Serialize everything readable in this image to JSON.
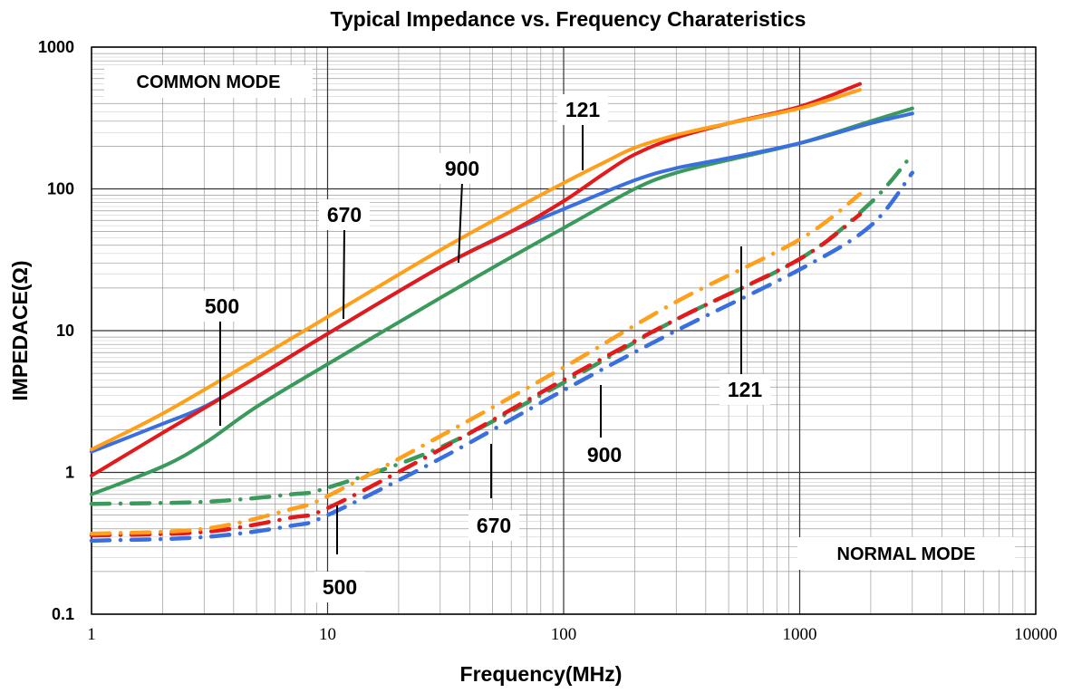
{
  "chart_data": {
    "type": "line",
    "title": "Typical Impedance vs. Frequency Charateristics",
    "xlabel": "Frequency(MHz)",
    "ylabel": "IMPEDACE(Ω)",
    "x_scale": "log",
    "y_scale": "log",
    "xlim": [
      1,
      10000
    ],
    "ylim": [
      0.1,
      1000
    ],
    "x_ticks": [
      "1",
      "10",
      "100",
      "1000",
      "10000"
    ],
    "y_ticks": [
      "1000",
      "100",
      "10",
      "1",
      "0.1"
    ],
    "grid": true,
    "mode_labels": {
      "common": "COMMON MODE",
      "normal": "NORMAL MODE"
    },
    "colors": {
      "121": "#e31a1c",
      "900": "#3a6fe0",
      "670": "#ff9f1a",
      "500": "#3a9a5c"
    },
    "series": [
      {
        "name": "121",
        "mode": "common",
        "color": "#e31a1c",
        "points": [
          [
            1,
            0.95
          ],
          [
            2,
            1.9
          ],
          [
            5,
            4.7
          ],
          [
            10,
            9.5
          ],
          [
            30,
            28
          ],
          [
            60,
            50
          ],
          [
            100,
            82
          ],
          [
            150,
            130
          ],
          [
            200,
            175
          ],
          [
            300,
            230
          ],
          [
            500,
            290
          ],
          [
            1000,
            380
          ],
          [
            1800,
            550
          ]
        ]
      },
      {
        "name": "900",
        "mode": "common",
        "color": "#3a6fe0",
        "points": [
          [
            1,
            1.4
          ],
          [
            2,
            2.2
          ],
          [
            3,
            2.9
          ],
          [
            5,
            4.7
          ],
          [
            10,
            9.5
          ],
          [
            30,
            28
          ],
          [
            60,
            50
          ],
          [
            100,
            72
          ],
          [
            200,
            115
          ],
          [
            300,
            140
          ],
          [
            500,
            165
          ],
          [
            1000,
            210
          ],
          [
            2000,
            290
          ],
          [
            3000,
            340
          ]
        ]
      },
      {
        "name": "670",
        "mode": "common",
        "color": "#ff9f1a",
        "points": [
          [
            1,
            1.45
          ],
          [
            2,
            2.6
          ],
          [
            5,
            6.3
          ],
          [
            10,
            12.5
          ],
          [
            30,
            37
          ],
          [
            60,
            70
          ],
          [
            100,
            110
          ],
          [
            150,
            155
          ],
          [
            200,
            195
          ],
          [
            300,
            240
          ],
          [
            500,
            290
          ],
          [
            1000,
            370
          ],
          [
            1800,
            500
          ]
        ]
      },
      {
        "name": "500",
        "mode": "common",
        "color": "#3a9a5c",
        "points": [
          [
            1,
            0.7
          ],
          [
            2,
            1.1
          ],
          [
            3,
            1.6
          ],
          [
            5,
            2.9
          ],
          [
            10,
            5.8
          ],
          [
            30,
            17
          ],
          [
            60,
            33
          ],
          [
            100,
            53
          ],
          [
            200,
            100
          ],
          [
            300,
            130
          ],
          [
            500,
            160
          ],
          [
            1000,
            210
          ],
          [
            2000,
            300
          ],
          [
            3000,
            370
          ]
        ]
      },
      {
        "name": "121",
        "mode": "normal",
        "color": "#e31a1c",
        "points": [
          [
            1,
            0.36
          ],
          [
            3,
            0.38
          ],
          [
            7,
            0.48
          ],
          [
            10,
            0.56
          ],
          [
            30,
            1.45
          ],
          [
            100,
            4.5
          ],
          [
            300,
            12
          ],
          [
            1000,
            32
          ],
          [
            1800,
            66
          ]
        ]
      },
      {
        "name": "900",
        "mode": "normal",
        "color": "#3a6fe0",
        "points": [
          [
            1,
            0.33
          ],
          [
            3,
            0.35
          ],
          [
            7,
            0.42
          ],
          [
            10,
            0.5
          ],
          [
            30,
            1.25
          ],
          [
            100,
            3.8
          ],
          [
            300,
            10
          ],
          [
            1000,
            27
          ],
          [
            2000,
            55
          ],
          [
            3000,
            130
          ]
        ]
      },
      {
        "name": "670",
        "mode": "normal",
        "color": "#ff9f1a",
        "points": [
          [
            1,
            0.37
          ],
          [
            3,
            0.4
          ],
          [
            7,
            0.55
          ],
          [
            10,
            0.68
          ],
          [
            30,
            1.8
          ],
          [
            100,
            5.5
          ],
          [
            300,
            16
          ],
          [
            1000,
            44
          ],
          [
            1800,
            92
          ]
        ]
      },
      {
        "name": "500",
        "mode": "normal",
        "color": "#3a9a5c",
        "points": [
          [
            1,
            0.6
          ],
          [
            3,
            0.62
          ],
          [
            7,
            0.7
          ],
          [
            10,
            0.78
          ],
          [
            30,
            1.5
          ],
          [
            100,
            4.3
          ],
          [
            300,
            12
          ],
          [
            1000,
            32
          ],
          [
            2000,
            80
          ],
          [
            3000,
            175
          ]
        ]
      }
    ],
    "annotations": [
      {
        "text": "121",
        "mode": "common",
        "x": 120,
        "y": 130
      },
      {
        "text": "900",
        "mode": "common",
        "x": 35,
        "y": 29
      },
      {
        "text": "670",
        "mode": "common",
        "x": 12,
        "y": 12.5
      },
      {
        "text": "500",
        "mode": "common",
        "x": 3.5,
        "y": 2
      },
      {
        "text": "121",
        "mode": "normal",
        "x": 560,
        "y": 25
      },
      {
        "text": "900",
        "mode": "normal",
        "x": 145,
        "y": 4.7
      },
      {
        "text": "670",
        "mode": "normal",
        "x": 50,
        "y": 2.3
      },
      {
        "text": "500",
        "mode": "normal",
        "x": 11,
        "y": 0.78
      }
    ]
  }
}
